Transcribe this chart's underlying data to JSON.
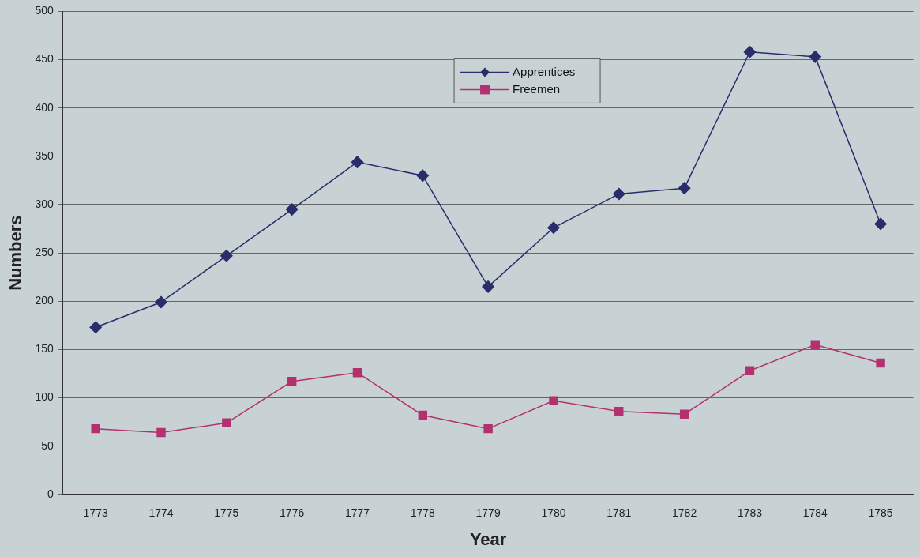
{
  "chart_data": {
    "type": "line",
    "xlabel": "Year",
    "ylabel": "Numbers",
    "categories": [
      "1773",
      "1774",
      "1775",
      "1776",
      "1777",
      "1778",
      "1779",
      "1780",
      "1781",
      "1782",
      "1783",
      "1784",
      "1785"
    ],
    "series": [
      {
        "name": "Apprentices",
        "color": "#2a2d6b",
        "marker": "diamond",
        "values": [
          173,
          199,
          247,
          295,
          344,
          330,
          215,
          276,
          311,
          317,
          458,
          453,
          280
        ]
      },
      {
        "name": "Freemen",
        "color": "#b3316f",
        "marker": "square",
        "values": [
          68,
          64,
          74,
          117,
          126,
          82,
          68,
          97,
          86,
          83,
          128,
          155,
          136
        ]
      }
    ],
    "ylim": [
      0,
      500
    ],
    "yticks": [
      0,
      50,
      100,
      150,
      200,
      250,
      300,
      350,
      400,
      450,
      500
    ],
    "grid": "y",
    "legend": "top",
    "line_style": "solid"
  }
}
